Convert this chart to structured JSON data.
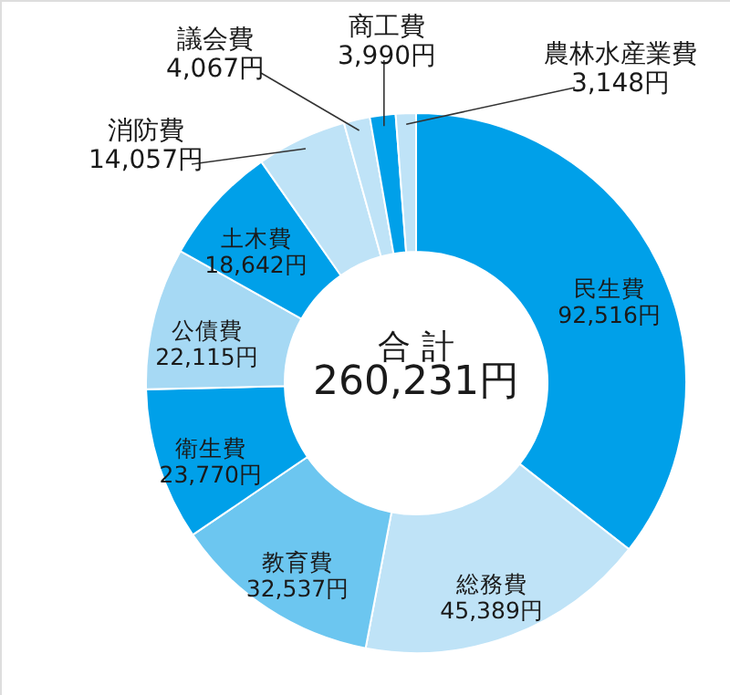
{
  "chart_data": {
    "type": "donut",
    "categories": [
      "民生費",
      "総務費",
      "教育費",
      "衛生費",
      "公債費",
      "土木費",
      "消防費",
      "議会費",
      "商工費",
      "農林水産業費"
    ],
    "values": [
      92516,
      45389,
      32537,
      23770,
      22115,
      18642,
      14057,
      4067,
      3990,
      3148
    ],
    "value_labels": [
      "92,516円",
      "45,389円",
      "32,537円",
      "23,770円",
      "22,115円",
      "18,642円",
      "14,057円",
      "4,067円",
      "3,990円",
      "3,148円"
    ],
    "colors": [
      "#00a0e9",
      "#bfe3f7",
      "#6cc6f0",
      "#00a0e9",
      "#a6d9f4",
      "#00a0e9",
      "#bfe3f7",
      "#bfe3f7",
      "#00a0e9",
      "#bfe3f7"
    ],
    "annotations": [
      "合 計",
      "260,231円"
    ]
  }
}
